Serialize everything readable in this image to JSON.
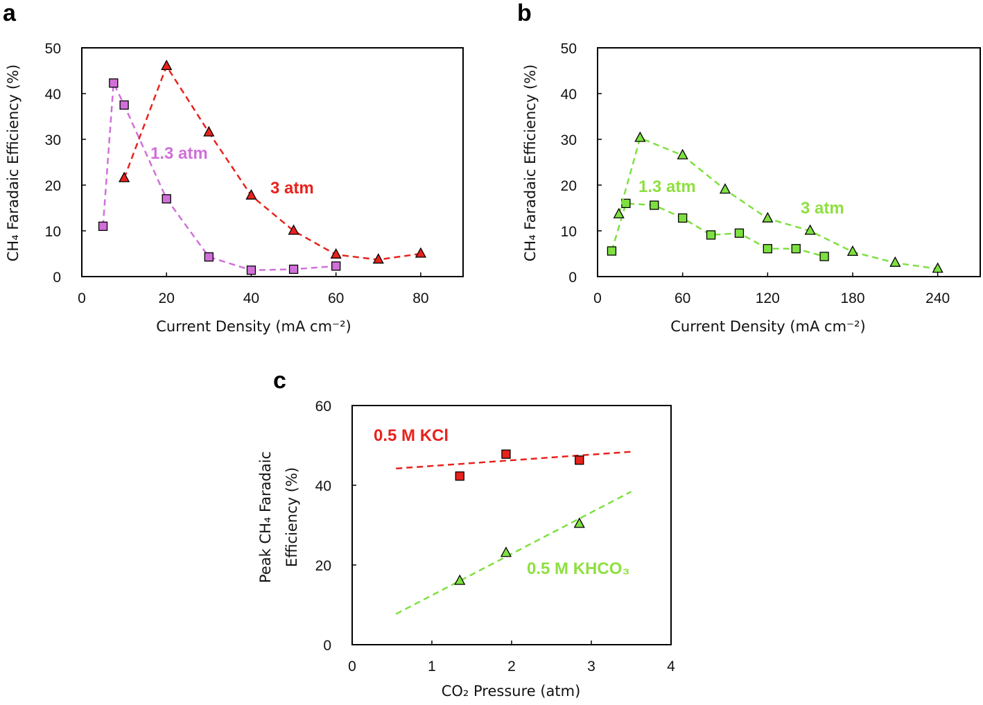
{
  "panels": [
    {
      "id": "a",
      "label": "a"
    },
    {
      "id": "b",
      "label": "b"
    },
    {
      "id": "c",
      "label": "c"
    }
  ],
  "chart_data": [
    {
      "panel": "a",
      "type": "scatter",
      "xlabel": "Current Density (mA cm⁻²)",
      "ylabel": "CH₄ Faradaic Efficiency (%)",
      "xlim": [
        0,
        90
      ],
      "ylim": [
        0,
        50
      ],
      "xticks": [
        0,
        20,
        40,
        60,
        80
      ],
      "yticks": [
        0,
        10,
        20,
        30,
        40,
        50
      ],
      "grid": false,
      "series": [
        {
          "name": "1.3 atm",
          "marker": "square",
          "color": "#d070d8",
          "line": "dashed",
          "x": [
            5,
            7.5,
            10,
            20,
            30,
            40,
            50,
            60
          ],
          "y": [
            11,
            42.3,
            37.5,
            17,
            4.3,
            1.4,
            1.6,
            2.3
          ]
        },
        {
          "name": "3 atm",
          "marker": "triangle",
          "color": "#e8221c",
          "line": "dashed",
          "x": [
            10,
            20,
            30,
            40,
            50,
            60,
            70,
            80
          ],
          "y": [
            21.5,
            46,
            31.5,
            17.7,
            10,
            4.8,
            3.7,
            5
          ]
        }
      ],
      "annotations": [
        {
          "text": "1.3 atm",
          "color": "#d070d8"
        },
        {
          "text": "3 atm",
          "color": "#e8221c"
        }
      ]
    },
    {
      "panel": "b",
      "type": "scatter",
      "xlabel": "Current Density (mA cm⁻²)",
      "ylabel": "CH₄ Faradaic Efficiency (%)",
      "xlim": [
        0,
        270
      ],
      "ylim": [
        0,
        50
      ],
      "xticks": [
        0,
        60,
        120,
        180,
        240
      ],
      "yticks": [
        0,
        10,
        20,
        30,
        40,
        50
      ],
      "grid": false,
      "series": [
        {
          "name": "1.3 atm",
          "marker": "square",
          "color": "#7ee040",
          "line": "dashed",
          "x": [
            10,
            20,
            40,
            60,
            80,
            100,
            120,
            140,
            160
          ],
          "y": [
            5.6,
            16,
            15.6,
            12.8,
            9.1,
            9.5,
            6.1,
            6.1,
            4.4
          ]
        },
        {
          "name": "3 atm",
          "marker": "triangle",
          "color": "#7ee040",
          "line": "dashed",
          "x": [
            15,
            30,
            60,
            90,
            120,
            150,
            180,
            210,
            240
          ],
          "y": [
            13.6,
            30.3,
            26.5,
            19,
            12.7,
            10,
            5.4,
            3,
            1.7
          ]
        }
      ],
      "annotations": [
        {
          "text": "1.3 atm",
          "color": "#8ee040"
        },
        {
          "text": "3 atm",
          "color": "#8ee040"
        }
      ]
    },
    {
      "panel": "c",
      "type": "scatter",
      "xlabel": "CO₂ Pressure (atm)",
      "ylabel": [
        "Peak CH₄ Faradaic",
        "Efficiency (%)"
      ],
      "xlim": [
        0,
        4
      ],
      "ylim": [
        0,
        60
      ],
      "xticks": [
        0,
        1,
        2,
        3,
        4
      ],
      "yticks": [
        0,
        20,
        40,
        60
      ],
      "grid": false,
      "series": [
        {
          "name": "0.5 M KCl",
          "marker": "square",
          "color": "#e8221c",
          "x": [
            1.35,
            1.93,
            2.85
          ],
          "y": [
            42.3,
            47.8,
            46.3
          ],
          "fit": {
            "x": [
              0.55,
              3.5
            ],
            "y": [
              44.2,
              48.4
            ]
          }
        },
        {
          "name": "0.5 M KHCO₃",
          "marker": "triangle",
          "color": "#7ee040",
          "x": [
            1.35,
            1.93,
            2.85
          ],
          "y": [
            16,
            23,
            30.3
          ],
          "fit": {
            "x": [
              0.55,
              3.5
            ],
            "y": [
              7.7,
              38.4
            ]
          }
        }
      ],
      "annotations": [
        {
          "text": "0.5 M KCl",
          "color": "#e8221c"
        },
        {
          "text": "0.5 M KHCO₃",
          "color": "#8ee040"
        }
      ]
    }
  ]
}
